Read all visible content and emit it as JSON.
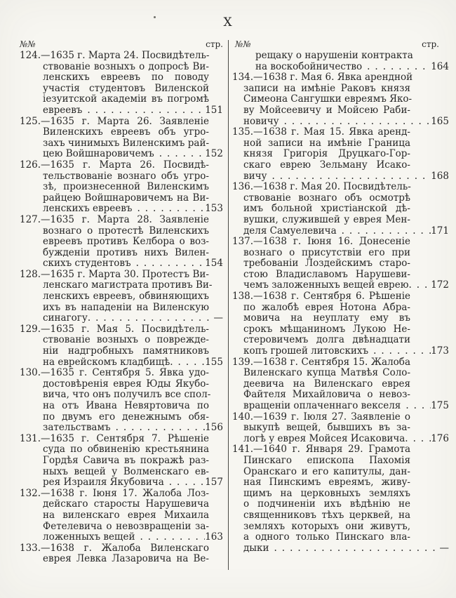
{
  "colors": {
    "paper": "#f7f6f1",
    "ink": "#262626",
    "divider": "#4a4a46"
  },
  "page": {
    "roman_numeral": "X",
    "columns": {
      "left": {
        "no_header": "№№",
        "page_header": "стр.",
        "entries": [
          {
            "lines": [
              "124.—1635 г. Марта 24. Посвидѣтель-",
              "ствованіе возныхъ о допросѣ Ви-",
              "ленскихъ евреевъ по поводу",
              "участія студентовъ Виленской",
              "іезуитской академіи въ погромѣ"
            ],
            "tail": "евреевъ",
            "page": "151"
          },
          {
            "lines": [
              "125.—1635 г. Марта 26. Заявленіе",
              "Виленскихъ евреевъ объ угро-",
              "захъ чинимыхъ Виленскимъ рай-"
            ],
            "tail": "цею Войшнаровичемъ",
            "page": "152"
          },
          {
            "lines": [
              "126.—1635 г. Марта 26. Посвидѣ-",
              "тельствованіе вознаго объ угро-",
              "зѣ, произнесенной Виленскимъ",
              "райцею Войшнаровичемъ на Ви-"
            ],
            "tail": "ленскихъ евреевъ",
            "page": "153"
          },
          {
            "lines": [
              "127.—1635 г. Марта 28. Заявленіе",
              "вознаго о протестѣ Виленскихъ",
              "евреевъ противъ Келбора о воз-",
              "бужденіи противъ нихъ Вилен-"
            ],
            "tail": "скихъ студентовъ",
            "page": "154"
          },
          {
            "lines": [
              "128.—1635 г. Марта 30. Протестъ Ви-",
              "ленскаго магистрата противъ Ви-",
              "ленскихъ евреевъ, обвиняющихъ",
              "ихъ въ нападеніи на Виленскую"
            ],
            "tail": "синагогу.",
            "page": "—"
          },
          {
            "lines": [
              "129.—1635 г. Мая 5. Посвидѣтель-",
              "ствованіе возныхъ о поврежде-",
              "ніи надгробныхъ памятниковъ"
            ],
            "tail": "на еврейскомъ кладбищѣ.",
            "page": "155"
          },
          {
            "lines": [
              "130.—1635 г. Сентября 5. Явка удо-",
              "достовѣренія еврея Юды Якубо-",
              "вича, что онъ получилъ все спол-",
              "на отъ Ивана Невяртовича по",
              "по двумъ его денежнымъ обя-"
            ],
            "tail": "зательствамъ",
            "page": "156"
          },
          {
            "lines": [
              "131.—1635 г. Сентября 7. Рѣшеніе",
              "суда по обвиненію крестьянина",
              "Гордѣя Савича въ покражѣ раз-",
              "ныхъ вещей у Волменскаго ев-"
            ],
            "tail": "рея Израиля Якубовича",
            "page": "157"
          },
          {
            "lines": [
              "132.—1638 г. Іюня 17. Жалоба Лоз-",
              "дейскаго старосты Нарушевича",
              "на виленскаго еврея Михаила",
              "Фетелевича о невозвращеніи за-"
            ],
            "tail": "ложенныхъ вещей",
            "page": "163"
          },
          {
            "lines": [
              "133.—1638 г. Жалоба Виленскаго"
            ],
            "tail": "еврея Левка Лазаровича на Ве-",
            "page": ""
          }
        ]
      },
      "right": {
        "no_header": "№№",
        "page_header": "стр.",
        "entries": [
          {
            "continuation": true,
            "lines": [
              "рещаку о нарушеніи контракта"
            ],
            "tail": "на воскобойничество",
            "page": "164"
          },
          {
            "lines": [
              "134.—1638 г. Мая 6. Явка арендной",
              "записи на имѣніе Раковъ князя",
              "Симеона Сангушки евреямъ Яко-",
              "ву Мойсеевичу и Мойсею Раби-"
            ],
            "tail": "новичу",
            "page": "165"
          },
          {
            "lines": [
              "135.—1638 г. Мая 15. Явка аренд-",
              "ной записи на имѣніе Граница",
              "князя Григорія Друцкаго-Гор-",
              "скаго еврею Зельману Исако-"
            ],
            "tail": "вичу",
            "page": "168"
          },
          {
            "lines": [
              "136.—1638 г. Мая 20. Посвидѣтель-",
              "ствованіе вознаго объ осмотрѣ",
              "имъ больной христіанской дѣ-",
              "вушки, служившей у еврея Мен-"
            ],
            "tail": "деля Самуелевича",
            "page": "171"
          },
          {
            "lines": [
              "137.—1638 г. Іюня 16. Донесеніе",
              "вознаго о присутствіи его при",
              "требованіи Лоздейскимъ старо-",
              "стою Владиславомъ Нарушеви-"
            ],
            "tail": "чемъ заложенныхъ вещей еврею.",
            "page": "172"
          },
          {
            "lines": [
              "138.—1638 г. Сентября 6. Рѣшеніе",
              "по жалобѣ еврея Нотона Абра-",
              "мовича на неуплату ему въ",
              "срокъ мѣщаниномъ Лукою Не-",
              "стеровичемъ долга двѣнадцати"
            ],
            "tail": "копъ грошей литовскихъ",
            "page": "173"
          },
          {
            "lines": [
              "139.—1638 г. Сентября 15. Жалоба",
              "Виленскаго купца Матвѣя Соло-",
              "деевича на Виленскаго еврея",
              "Файтеля Михайловича о невоз-"
            ],
            "tail": "вращеніи оплаченнаго векселя",
            "page": "175"
          },
          {
            "lines": [
              "140.—1639 г. Іюля 27. Заявленіе о",
              "выкупѣ вещей, бывшихъ въ за-"
            ],
            "tail": "логѣ у еврея Мойсея Исаковича.",
            "page": "176"
          },
          {
            "lines": [
              "141.—1640 г. Января 29. Грамота",
              "Пинскаго епископа Пахомія",
              "Оранскаго и его капитулы, дан-",
              "ная Пинскимъ евреямъ, живу-",
              "щимъ на церковныхъ земляхъ",
              "о подчиненіи ихъ вѣдѣнію не",
              "священниковъ тѣхъ церквей, на",
              "земляхъ которыхъ они живутъ,",
              "а одного только Пинскаго вла-"
            ],
            "tail": "дыки",
            "page": "—"
          }
        ]
      }
    }
  }
}
